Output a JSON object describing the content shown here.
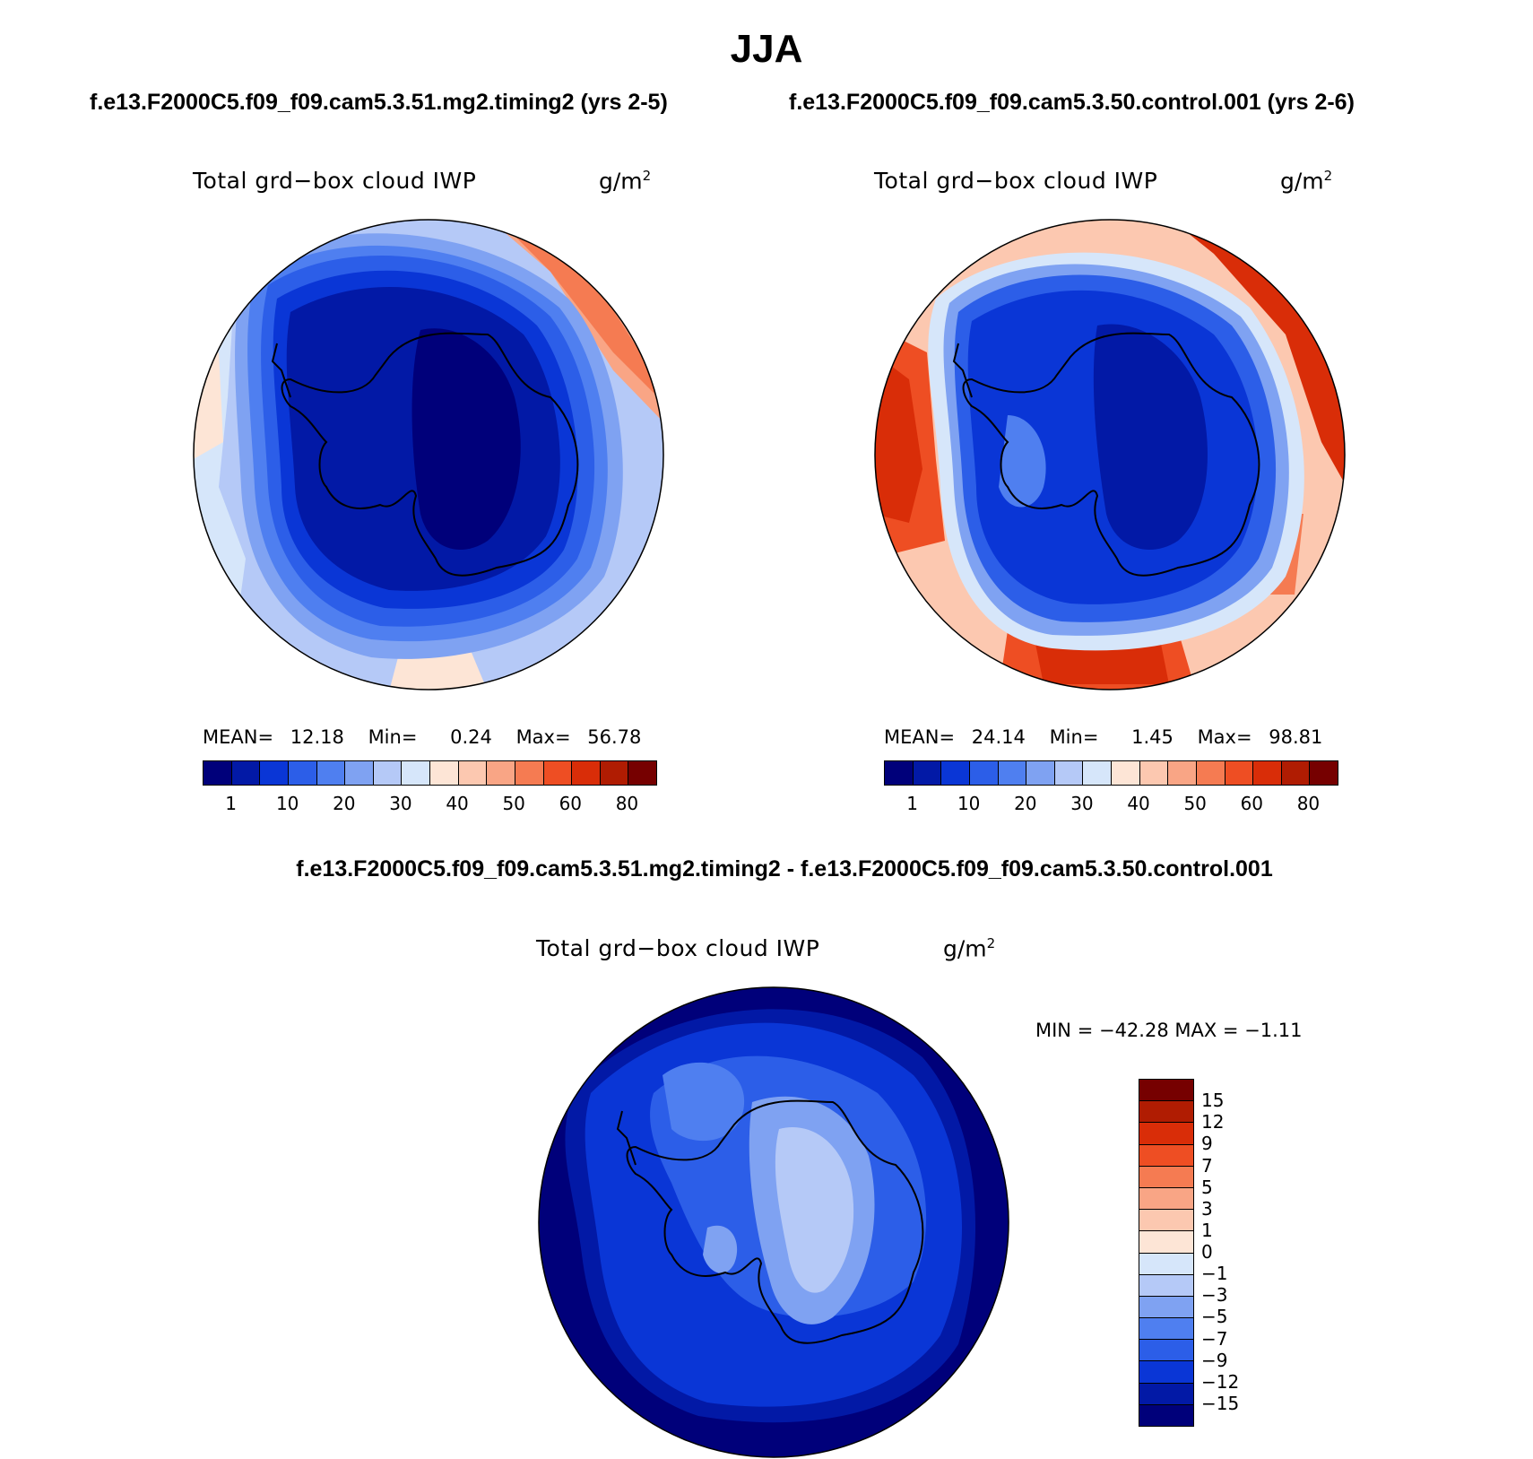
{
  "title": "JJA",
  "panels": {
    "top_left": {
      "case": "f.e13.F2000C5.f09_f09.cam5.3.51.mg2.timing2 (yrs 2-5)",
      "variable": "Total grd−box cloud IWP",
      "units": "g/m",
      "units_sup": "2",
      "mean_label": "MEAN=",
      "mean": "12.18",
      "min_label": "Min=",
      "min": "0.24",
      "max_label": "Max=",
      "max": "56.78"
    },
    "top_right": {
      "case": "f.e13.F2000C5.f09_f09.cam5.3.50.control.001 (yrs 2-6)",
      "variable": "Total grd−box cloud IWP",
      "units": "g/m",
      "units_sup": "2",
      "mean_label": "MEAN=",
      "mean": "24.14",
      "min_label": "Min=",
      "min": "1.45",
      "max_label": "Max=",
      "max": "98.81"
    },
    "difference": {
      "title": "f.e13.F2000C5.f09_f09.cam5.3.51.mg2.timing2 - f.e13.F2000C5.f09_f09.cam5.3.50.control.001",
      "variable": "Total grd−box cloud IWP",
      "units": "g/m",
      "units_sup": "2",
      "minmax": "MIN = −42.28 MAX =  −1.11"
    }
  },
  "colorbar_abs": {
    "colors": [
      "#00007a",
      "#0219a6",
      "#0a36d6",
      "#2c5ee8",
      "#4f7ff0",
      "#7fa2f2",
      "#b5c9f7",
      "#d6e6fa",
      "#fde5d6",
      "#fcc8b0",
      "#f9a585",
      "#f57b52",
      "#ee4e23",
      "#d92d08",
      "#b01c02",
      "#760000"
    ],
    "labels": [
      "1",
      "10",
      "20",
      "30",
      "40",
      "50",
      "60",
      "80"
    ]
  },
  "colorbar_diff": {
    "colors": [
      "#760000",
      "#b01c02",
      "#d92d08",
      "#ee4e23",
      "#f57b52",
      "#f9a585",
      "#fcc8b0",
      "#fde5d6",
      "#d6e6fa",
      "#b5c9f7",
      "#7fa2f2",
      "#4f7ff0",
      "#2c5ee8",
      "#0a36d6",
      "#0219a6",
      "#00007a"
    ],
    "labels": [
      "15",
      "12",
      "9",
      "7",
      "5",
      "3",
      "1",
      "0",
      "−1",
      "−3",
      "−5",
      "−7",
      "−9",
      "−12",
      "−15"
    ]
  }
}
